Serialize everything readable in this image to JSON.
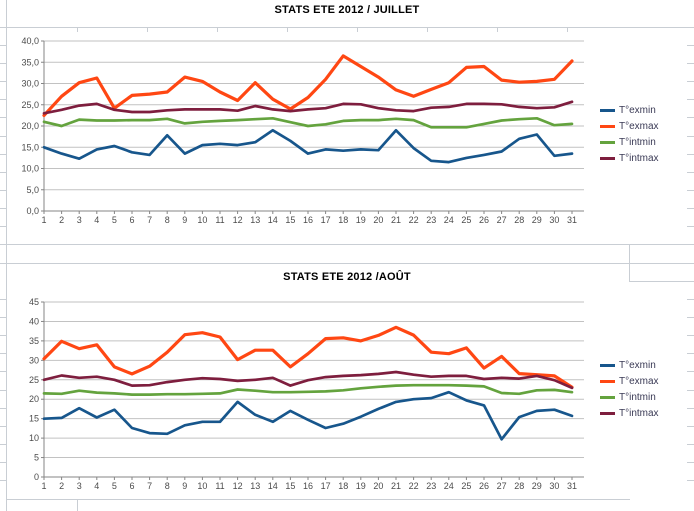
{
  "sheet": {
    "grid_color": "#c9ced4"
  },
  "chart_data": [
    {
      "type": "line",
      "title": "STATS ETE 2012 / JUILLET",
      "x_labels": [
        "1",
        "2",
        "3",
        "4",
        "5",
        "6",
        "7",
        "8",
        "9",
        "10",
        "11",
        "12",
        "13",
        "14",
        "15",
        "16",
        "17",
        "18",
        "19",
        "20",
        "21",
        "22",
        "23",
        "24",
        "25",
        "26",
        "27",
        "28",
        "29",
        "30",
        "31"
      ],
      "xlabel": "",
      "ylabel": "",
      "ylim": [
        0,
        40
      ],
      "ytick_step": 5,
      "ytick_decimal_comma": true,
      "grid": true,
      "legend_position": "right",
      "series": [
        {
          "name": "T°exmin",
          "color": "#17568c",
          "values": [
            15,
            13.5,
            12.3,
            14.5,
            15.3,
            13.8,
            13.2,
            17.8,
            13.5,
            15.5,
            15.8,
            15.5,
            16.2,
            19,
            16.5,
            13.5,
            14.5,
            14.2,
            14.5,
            14.3,
            19,
            14.8,
            11.8,
            11.5,
            12.5,
            13.2,
            14,
            17,
            18,
            13,
            13.5
          ]
        },
        {
          "name": "T°exmax",
          "color": "#ff4713",
          "values": [
            22.5,
            27,
            30.2,
            31.3,
            24.2,
            27.2,
            27.5,
            28,
            31.5,
            30.5,
            28,
            26,
            30.2,
            26.3,
            24,
            26.7,
            31,
            36.5,
            34,
            31.5,
            28.5,
            27,
            28.6,
            30.2,
            33.8,
            34,
            30.8,
            30.3,
            30.5,
            31,
            35.3
          ]
        },
        {
          "name": "T°intmin",
          "color": "#64a33e",
          "values": [
            21,
            20,
            21.5,
            21.3,
            21.3,
            21.4,
            21.4,
            21.7,
            20.6,
            21,
            21.2,
            21.4,
            21.6,
            21.8,
            20.9,
            20,
            20.4,
            21.2,
            21.4,
            21.4,
            21.7,
            21.4,
            19.7,
            19.7,
            19.7,
            20.5,
            21.3,
            21.6,
            21.8,
            20.2,
            20.5
          ]
        },
        {
          "name": "T°intmax",
          "color": "#7e1e3e",
          "values": [
            23,
            23.8,
            24.8,
            25.2,
            23.8,
            23.3,
            23.3,
            23.7,
            23.9,
            23.9,
            23.9,
            23.6,
            24.7,
            23.9,
            23.5,
            23.9,
            24.2,
            25.2,
            25.1,
            24.2,
            23.7,
            23.5,
            24.3,
            24.5,
            25.2,
            25.2,
            25.1,
            24.5,
            24.2,
            24.4,
            25.7
          ]
        }
      ]
    },
    {
      "type": "line",
      "title": "STATS ETE 2012 /AOÛT",
      "x_labels": [
        "1",
        "2",
        "3",
        "4",
        "5",
        "6",
        "7",
        "8",
        "9",
        "10",
        "11",
        "12",
        "13",
        "14",
        "15",
        "16",
        "17",
        "18",
        "19",
        "20",
        "21",
        "22",
        "23",
        "24",
        "25",
        "26",
        "27",
        "28",
        "29",
        "30",
        "31"
      ],
      "xlabel": "",
      "ylabel": "",
      "ylim": [
        0,
        45
      ],
      "ytick_step": 5,
      "ytick_decimal_comma": false,
      "grid": true,
      "legend_position": "right",
      "series": [
        {
          "name": "T°exmin",
          "color": "#17568c",
          "values": [
            15,
            15.2,
            17.7,
            15.3,
            17.3,
            12.6,
            11.3,
            11.1,
            13.3,
            14.2,
            14.2,
            19.3,
            16,
            14.2,
            17,
            14.7,
            12.6,
            13.7,
            15.5,
            17.5,
            19.3,
            20,
            20.3,
            21.8,
            19.7,
            18.4,
            9.7,
            15.4,
            17,
            17.3,
            15.7
          ]
        },
        {
          "name": "T°exmax",
          "color": "#ff4713",
          "values": [
            30.4,
            34.9,
            33,
            34,
            28.3,
            26.5,
            28.5,
            32.1,
            36.6,
            37.1,
            36,
            30.2,
            32.6,
            32.6,
            28.3,
            31.7,
            35.6,
            35.8,
            35,
            36.4,
            38.5,
            36.5,
            32.1,
            31.7,
            33.2,
            28,
            31,
            26.6,
            26.3,
            26,
            23.1
          ]
        },
        {
          "name": "T°intmin",
          "color": "#64a33e",
          "values": [
            21.5,
            21.4,
            22.2,
            21.7,
            21.5,
            21.2,
            21.2,
            21.3,
            21.3,
            21.4,
            21.5,
            22.5,
            22.2,
            21.8,
            21.8,
            21.9,
            22,
            22.3,
            22.8,
            23.2,
            23.5,
            23.6,
            23.6,
            23.6,
            23.5,
            23.3,
            21.6,
            21.4,
            22.3,
            22.4,
            21.8
          ]
        },
        {
          "name": "T°intmax",
          "color": "#7e1e3e",
          "values": [
            25,
            26.1,
            25.5,
            25.8,
            25,
            23.5,
            23.6,
            24.4,
            25,
            25.4,
            25.2,
            24.7,
            25,
            25.5,
            23.5,
            24.9,
            25.7,
            26,
            26.2,
            26.5,
            27,
            26.3,
            25.8,
            26,
            26,
            25.2,
            25.5,
            25.3,
            26,
            24.9,
            22.9
          ]
        }
      ]
    }
  ]
}
